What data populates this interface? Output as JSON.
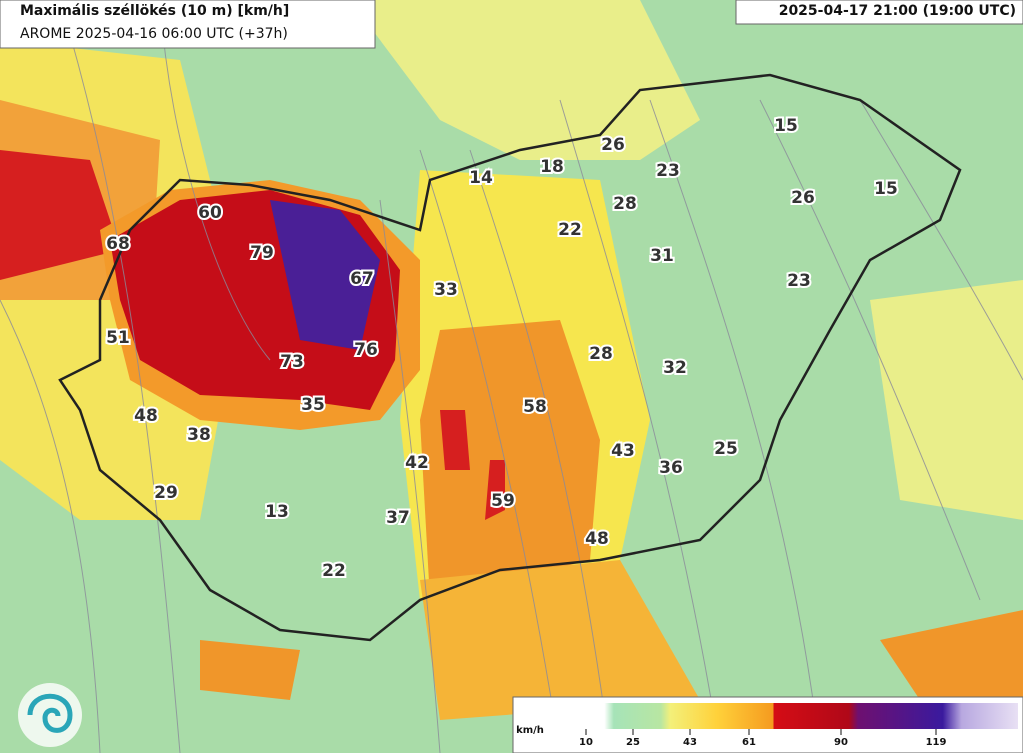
{
  "header": {
    "title": "Maximális széllökés (10 m) [km/h]",
    "subtitle": "AROME 2025-04-16 06:00 UTC (+37h)",
    "valid_time": "2025-04-17 21:00 (19:00 UTC)"
  },
  "map_labels": [
    60,
    68,
    79,
    67,
    51,
    73,
    76,
    48,
    38,
    35,
    33,
    14,
    18,
    26,
    23,
    28,
    22,
    31,
    15,
    26,
    15,
    23,
    28,
    32,
    58,
    43,
    36,
    25,
    42,
    59,
    37,
    48,
    29,
    13,
    22
  ],
  "legend": {
    "unit": "km/h",
    "ticks": [
      10,
      25,
      43,
      61,
      90,
      119
    ]
  }
}
